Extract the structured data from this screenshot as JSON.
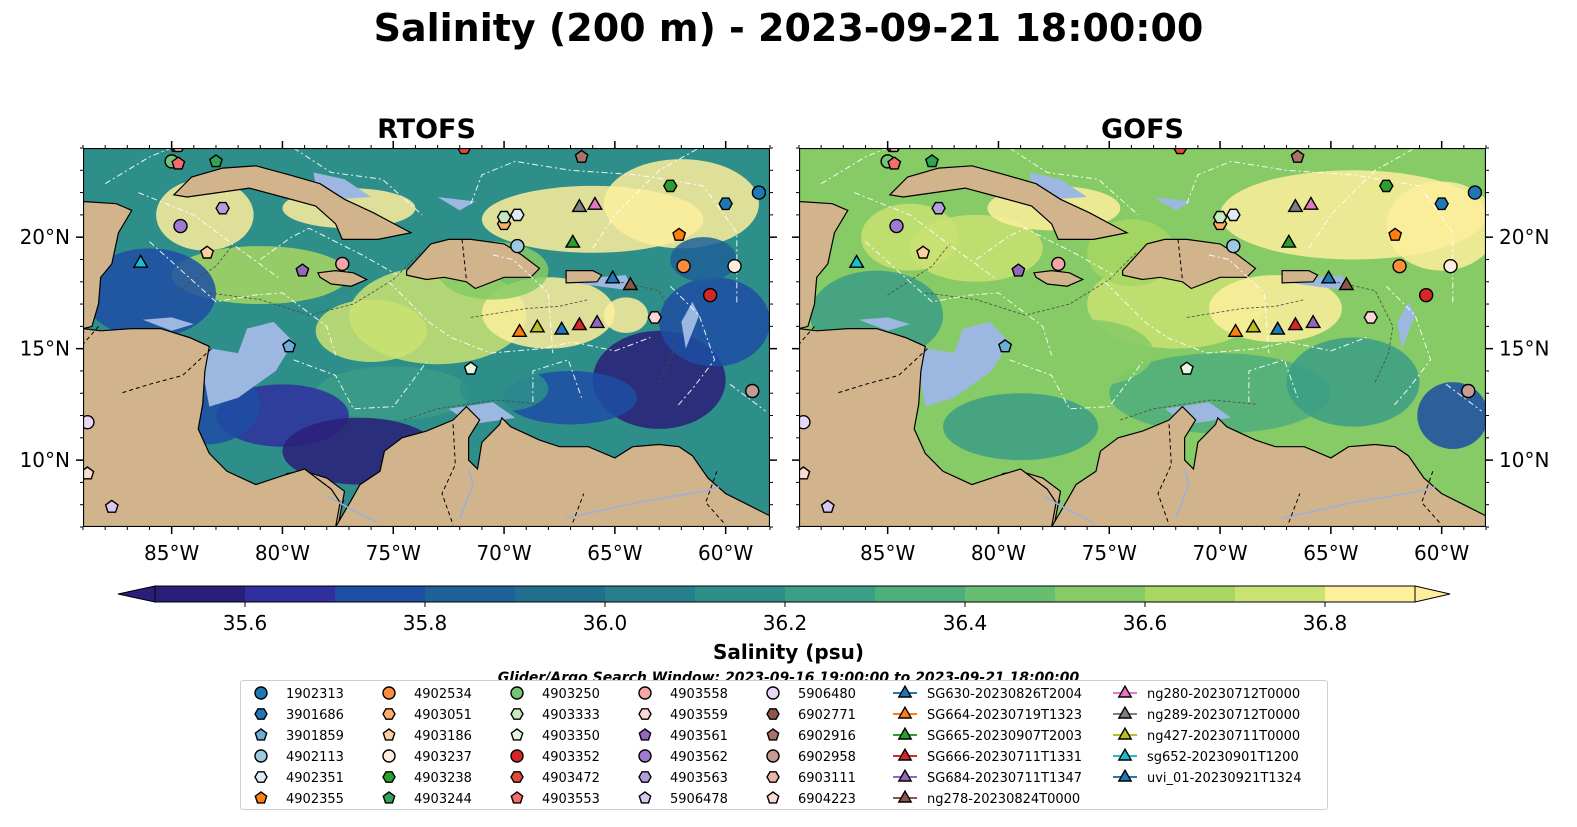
{
  "title": "Salinity (200 m) - 2023-09-21 18:00:00",
  "panels": [
    {
      "id": "rtofs",
      "title": "RTOFS"
    },
    {
      "id": "gofs",
      "title": "GOFS"
    }
  ],
  "axes": {
    "lon_ticks": [
      {
        "value": -85,
        "label": "85°W"
      },
      {
        "value": -80,
        "label": "80°W"
      },
      {
        "value": -75,
        "label": "75°W"
      },
      {
        "value": -70,
        "label": "70°W"
      },
      {
        "value": -65,
        "label": "65°W"
      },
      {
        "value": -60,
        "label": "60°W"
      }
    ],
    "lat_ticks": [
      {
        "value": 20,
        "label": "20°N"
      },
      {
        "value": 15,
        "label": "15°N"
      },
      {
        "value": 10,
        "label": "10°N"
      }
    ],
    "lon_range": [
      -89,
      -58
    ],
    "lat_range": [
      7,
      24
    ]
  },
  "colorbar": {
    "label": "Salinity (psu)",
    "range": [
      35.5,
      36.9
    ],
    "step": 0.1,
    "ticks": [
      35.6,
      35.8,
      36.0,
      36.2,
      36.4,
      36.6,
      36.8
    ],
    "tick_labels": [
      "35.6",
      "35.8",
      "36.0",
      "36.2",
      "36.4",
      "36.6",
      "36.8"
    ],
    "colors": [
      "#2a1f78",
      "#2f2f9e",
      "#1d4ea3",
      "#1f6098",
      "#216f8d",
      "#277f8c",
      "#2e8f8a",
      "#3b9e86",
      "#4fae7d",
      "#67be70",
      "#86cb65",
      "#a7d762",
      "#c9e272",
      "#fdef9c"
    ]
  },
  "search_window": "Glider/Argo Search Window: 2023-09-16 19:00:00 to 2023-09-21 18:00:00",
  "colors": {
    "land": "#d2b48c",
    "shelf": "#9db8e0",
    "river": "#9ab0dd",
    "edge": "#000000"
  },
  "legend": [
    {
      "label": "1902313",
      "marker": "circle",
      "color": "#1f77b4"
    },
    {
      "label": "3901686",
      "marker": "hexagon",
      "color": "#1f77b4"
    },
    {
      "label": "3901859",
      "marker": "pentagon",
      "color": "#6baed6"
    },
    {
      "label": "4902113",
      "marker": "circle",
      "color": "#9ecae1"
    },
    {
      "label": "4902351",
      "marker": "hexagon",
      "color": "#deebf7"
    },
    {
      "label": "4902355",
      "marker": "pentagon",
      "color": "#ff7f0e"
    },
    {
      "label": "4902534",
      "marker": "circle",
      "color": "#fd8d3c"
    },
    {
      "label": "4903051",
      "marker": "hexagon",
      "color": "#fdae6b"
    },
    {
      "label": "4903186",
      "marker": "pentagon",
      "color": "#fdd0a2"
    },
    {
      "label": "4903237",
      "marker": "circle",
      "color": "#feedde"
    },
    {
      "label": "4903238",
      "marker": "hexagon",
      "color": "#2ca02c"
    },
    {
      "label": "4903244",
      "marker": "pentagon",
      "color": "#31a354"
    },
    {
      "label": "4903250",
      "marker": "circle",
      "color": "#74c476"
    },
    {
      "label": "4903333",
      "marker": "hexagon",
      "color": "#c7e9c0"
    },
    {
      "label": "4903350",
      "marker": "pentagon",
      "color": "#e5f5e0"
    },
    {
      "label": "4903352",
      "marker": "circle",
      "color": "#d62728"
    },
    {
      "label": "4903472",
      "marker": "hexagon",
      "color": "#e34a33"
    },
    {
      "label": "4903553",
      "marker": "pentagon",
      "color": "#f46d6d"
    },
    {
      "label": "4903558",
      "marker": "circle",
      "color": "#f4a6a6"
    },
    {
      "label": "4903559",
      "marker": "hexagon",
      "color": "#fcd5d5"
    },
    {
      "label": "4903561",
      "marker": "pentagon",
      "color": "#9467bd"
    },
    {
      "label": "4903562",
      "marker": "circle",
      "color": "#9e7ad0"
    },
    {
      "label": "4903563",
      "marker": "hexagon",
      "color": "#b39ddb"
    },
    {
      "label": "5906478",
      "marker": "pentagon",
      "color": "#d8c8f0"
    },
    {
      "label": "5906480",
      "marker": "circle",
      "color": "#e7d8f7"
    },
    {
      "label": "6902771",
      "marker": "hexagon",
      "color": "#8c564b"
    },
    {
      "label": "6902916",
      "marker": "pentagon",
      "color": "#a9736a"
    },
    {
      "label": "6902958",
      "marker": "circle",
      "color": "#c49c94"
    },
    {
      "label": "6903111",
      "marker": "hexagon",
      "color": "#e8b8ab"
    },
    {
      "label": "6904223",
      "marker": "pentagon",
      "color": "#f9dccf"
    },
    {
      "label": "SG630-20230826T2004",
      "marker": "triangle",
      "color": "#1f77b4"
    },
    {
      "label": "SG664-20230719T1323",
      "marker": "triangle",
      "color": "#ff7f0e"
    },
    {
      "label": "SG665-20230907T2003",
      "marker": "triangle",
      "color": "#2ca02c"
    },
    {
      "label": "SG666-20230711T1331",
      "marker": "triangle",
      "color": "#d62728"
    },
    {
      "label": "SG684-20230711T1347",
      "marker": "triangle",
      "color": "#9467bd"
    },
    {
      "label": "ng278-20230824T0000",
      "marker": "triangle",
      "color": "#8c564b"
    },
    {
      "label": "ng280-20230712T0000",
      "marker": "triangle",
      "color": "#e377c2"
    },
    {
      "label": "ng289-20230712T0000",
      "marker": "triangle",
      "color": "#7f7f7f"
    },
    {
      "label": "ng427-20230711T0000",
      "marker": "triangle",
      "color": "#bcbd22"
    },
    {
      "label": "sg652-20230901T1200",
      "marker": "triangle",
      "color": "#17becf"
    },
    {
      "label": "uvi_01-20230921T1324",
      "marker": "triangle",
      "color": "#1f77b4"
    }
  ],
  "chart_data": {
    "type": "heatmap",
    "title": "Salinity (200 m) - 2023-09-21 18:00:00",
    "variable": "Salinity (psu)",
    "depth_m": 200,
    "color_range": [
      35.5,
      36.9
    ],
    "panels": [
      "RTOFS",
      "GOFS"
    ],
    "observations": [
      {
        "id": "1902313",
        "lon": -58.5,
        "lat": 22.0
      },
      {
        "id": "3901686",
        "lon": -60.0,
        "lat": 21.5
      },
      {
        "id": "3901859",
        "lon": -79.7,
        "lat": 15.1
      },
      {
        "id": "4902113",
        "lon": -69.4,
        "lat": 19.6
      },
      {
        "id": "4902351",
        "lon": -69.4,
        "lat": 21.0
      },
      {
        "id": "4902355",
        "lon": -62.1,
        "lat": 20.1
      },
      {
        "id": "4902534",
        "lon": -61.9,
        "lat": 18.7
      },
      {
        "id": "4903051",
        "lon": -70.0,
        "lat": 20.6
      },
      {
        "id": "4903186",
        "lon": -83.4,
        "lat": 19.3
      },
      {
        "id": "4903237",
        "lon": -59.6,
        "lat": 18.7
      },
      {
        "id": "4903238",
        "lon": -62.5,
        "lat": 22.3
      },
      {
        "id": "4903244",
        "lon": -83.0,
        "lat": 23.4
      },
      {
        "id": "4903250",
        "lon": -85.0,
        "lat": 23.4
      },
      {
        "id": "4903333",
        "lon": -70.0,
        "lat": 20.9
      },
      {
        "id": "4903350",
        "lon": -71.5,
        "lat": 14.1
      },
      {
        "id": "4903352",
        "lon": -60.7,
        "lat": 17.4
      },
      {
        "id": "4903472",
        "lon": -71.8,
        "lat": 24.0
      },
      {
        "id": "4903553",
        "lon": -84.7,
        "lat": 23.3
      },
      {
        "id": "4903558",
        "lon": -77.3,
        "lat": 18.8
      },
      {
        "id": "4903559",
        "lon": -63.2,
        "lat": 16.4
      },
      {
        "id": "4903561",
        "lon": -79.1,
        "lat": 18.5
      },
      {
        "id": "4903562",
        "lon": -84.6,
        "lat": 20.5
      },
      {
        "id": "4903563",
        "lon": -82.7,
        "lat": 21.3
      },
      {
        "id": "5906478",
        "lon": -87.7,
        "lat": 7.9
      },
      {
        "id": "5906480",
        "lon": -88.8,
        "lat": 11.7
      },
      {
        "id": "6902771",
        "lon": -84.8,
        "lat": 24.1
      },
      {
        "id": "6902916",
        "lon": -66.5,
        "lat": 23.6
      },
      {
        "id": "6902958",
        "lon": -58.8,
        "lat": 13.1
      },
      {
        "id": "6903111",
        "lon": -84.7,
        "lat": 24.1
      },
      {
        "id": "6904223",
        "lon": -88.8,
        "lat": 9.4
      },
      {
        "id": "SG630-20230826T2004",
        "lon": -65.1,
        "lat": 18.2
      },
      {
        "id": "SG664-20230719T1323",
        "lon": -69.3,
        "lat": 15.8
      },
      {
        "id": "SG665-20230907T2003",
        "lon": -66.9,
        "lat": 19.8
      },
      {
        "id": "SG666-20230711T1331",
        "lon": -66.6,
        "lat": 16.1
      },
      {
        "id": "SG684-20230711T1347",
        "lon": -65.8,
        "lat": 16.2
      },
      {
        "id": "ng278-20230824T0000",
        "lon": -64.3,
        "lat": 17.9
      },
      {
        "id": "ng280-20230712T0000",
        "lon": -65.9,
        "lat": 21.5
      },
      {
        "id": "ng289-20230712T0000",
        "lon": -66.6,
        "lat": 21.4
      },
      {
        "id": "ng427-20230711T0000",
        "lon": -68.5,
        "lat": 16.0
      },
      {
        "id": "sg652-20230901T1200",
        "lon": -86.4,
        "lat": 18.9
      },
      {
        "id": "uvi_01-20230921T1324",
        "lon": -67.4,
        "lat": 15.9
      }
    ]
  }
}
